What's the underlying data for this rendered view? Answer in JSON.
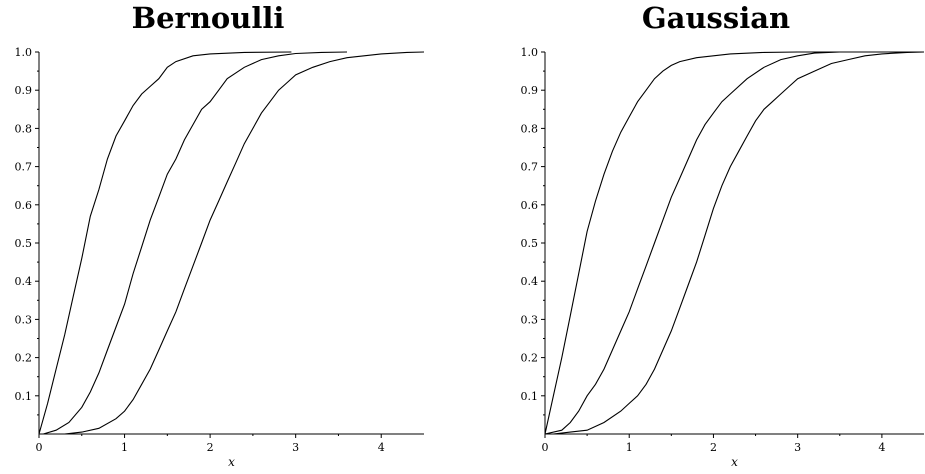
{
  "chart_data": [
    {
      "type": "line",
      "title": "Bernoulli",
      "xlabel": "x",
      "ylabel": "",
      "xlim": [
        0,
        4.5
      ],
      "ylim": [
        0,
        1.0
      ],
      "x_ticks": [
        "0",
        "1",
        "2",
        "3",
        "4"
      ],
      "y_ticks": [
        "0.1",
        "0.2",
        "0.3",
        "0.4",
        "0.5",
        "0.6",
        "0.7",
        "0.8",
        "0.9",
        "1.0"
      ],
      "series": [
        {
          "points": [
            [
              0,
              0
            ],
            [
              0.1,
              0.08
            ],
            [
              0.2,
              0.17
            ],
            [
              0.3,
              0.26
            ],
            [
              0.4,
              0.36
            ],
            [
              0.5,
              0.46
            ],
            [
              0.6,
              0.57
            ],
            [
              0.7,
              0.64
            ],
            [
              0.8,
              0.72
            ],
            [
              0.9,
              0.78
            ],
            [
              1.0,
              0.82
            ],
            [
              1.1,
              0.86
            ],
            [
              1.2,
              0.89
            ],
            [
              1.3,
              0.91
            ],
            [
              1.4,
              0.93
            ],
            [
              1.5,
              0.96
            ],
            [
              1.6,
              0.975
            ],
            [
              1.8,
              0.99
            ],
            [
              2.0,
              0.995
            ],
            [
              2.4,
              0.999
            ],
            [
              2.95,
              1.0
            ]
          ]
        },
        {
          "points": [
            [
              0.05,
              0
            ],
            [
              0.2,
              0.01
            ],
            [
              0.35,
              0.03
            ],
            [
              0.5,
              0.07
            ],
            [
              0.6,
              0.11
            ],
            [
              0.7,
              0.16
            ],
            [
              0.8,
              0.22
            ],
            [
              0.9,
              0.28
            ],
            [
              1.0,
              0.34
            ],
            [
              1.1,
              0.42
            ],
            [
              1.2,
              0.49
            ],
            [
              1.3,
              0.56
            ],
            [
              1.4,
              0.62
            ],
            [
              1.5,
              0.68
            ],
            [
              1.6,
              0.72
            ],
            [
              1.7,
              0.77
            ],
            [
              1.8,
              0.81
            ],
            [
              1.9,
              0.85
            ],
            [
              2.0,
              0.87
            ],
            [
              2.1,
              0.9
            ],
            [
              2.2,
              0.93
            ],
            [
              2.4,
              0.96
            ],
            [
              2.6,
              0.98
            ],
            [
              2.8,
              0.99
            ],
            [
              3.0,
              0.996
            ],
            [
              3.3,
              0.999
            ],
            [
              3.6,
              1.0
            ]
          ]
        },
        {
          "points": [
            [
              0.3,
              0
            ],
            [
              0.5,
              0.005
            ],
            [
              0.7,
              0.015
            ],
            [
              0.9,
              0.04
            ],
            [
              1.0,
              0.06
            ],
            [
              1.1,
              0.09
            ],
            [
              1.2,
              0.13
            ],
            [
              1.3,
              0.17
            ],
            [
              1.4,
              0.22
            ],
            [
              1.5,
              0.27
            ],
            [
              1.6,
              0.32
            ],
            [
              1.7,
              0.38
            ],
            [
              1.8,
              0.44
            ],
            [
              1.9,
              0.5
            ],
            [
              2.0,
              0.56
            ],
            [
              2.1,
              0.61
            ],
            [
              2.2,
              0.66
            ],
            [
              2.3,
              0.71
            ],
            [
              2.4,
              0.76
            ],
            [
              2.5,
              0.8
            ],
            [
              2.6,
              0.84
            ],
            [
              2.7,
              0.87
            ],
            [
              2.8,
              0.9
            ],
            [
              2.9,
              0.92
            ],
            [
              3.0,
              0.94
            ],
            [
              3.2,
              0.96
            ],
            [
              3.4,
              0.975
            ],
            [
              3.6,
              0.985
            ],
            [
              3.8,
              0.99
            ],
            [
              4.0,
              0.995
            ],
            [
              4.3,
              0.999
            ],
            [
              4.5,
              1.0
            ]
          ]
        }
      ]
    },
    {
      "type": "line",
      "title": "Gaussian",
      "xlabel": "x",
      "ylabel": "",
      "xlim": [
        0,
        4.5
      ],
      "ylim": [
        0,
        1.0
      ],
      "x_ticks": [
        "0",
        "1",
        "2",
        "3",
        "4"
      ],
      "y_ticks": [
        "0.1",
        "0.2",
        "0.3",
        "0.4",
        "0.5",
        "0.6",
        "0.7",
        "0.8",
        "0.9",
        "1.0"
      ],
      "series": [
        {
          "points": [
            [
              0,
              0
            ],
            [
              0.1,
              0.1
            ],
            [
              0.2,
              0.2
            ],
            [
              0.3,
              0.31
            ],
            [
              0.4,
              0.42
            ],
            [
              0.5,
              0.53
            ],
            [
              0.6,
              0.61
            ],
            [
              0.7,
              0.68
            ],
            [
              0.8,
              0.74
            ],
            [
              0.9,
              0.79
            ],
            [
              1.0,
              0.83
            ],
            [
              1.1,
              0.87
            ],
            [
              1.2,
              0.9
            ],
            [
              1.3,
              0.93
            ],
            [
              1.4,
              0.95
            ],
            [
              1.5,
              0.965
            ],
            [
              1.6,
              0.975
            ],
            [
              1.8,
              0.985
            ],
            [
              2.0,
              0.99
            ],
            [
              2.2,
              0.995
            ],
            [
              2.6,
              0.999
            ],
            [
              3.0,
              1.0
            ],
            [
              4.3,
              1.0
            ]
          ]
        },
        {
          "points": [
            [
              0,
              0
            ],
            [
              0.2,
              0.01
            ],
            [
              0.3,
              0.03
            ],
            [
              0.4,
              0.06
            ],
            [
              0.5,
              0.1
            ],
            [
              0.6,
              0.13
            ],
            [
              0.7,
              0.17
            ],
            [
              0.8,
              0.22
            ],
            [
              0.9,
              0.27
            ],
            [
              1.0,
              0.32
            ],
            [
              1.1,
              0.38
            ],
            [
              1.2,
              0.44
            ],
            [
              1.3,
              0.5
            ],
            [
              1.4,
              0.56
            ],
            [
              1.5,
              0.62
            ],
            [
              1.6,
              0.67
            ],
            [
              1.7,
              0.72
            ],
            [
              1.8,
              0.77
            ],
            [
              1.9,
              0.81
            ],
            [
              2.0,
              0.84
            ],
            [
              2.1,
              0.87
            ],
            [
              2.2,
              0.89
            ],
            [
              2.4,
              0.93
            ],
            [
              2.6,
              0.96
            ],
            [
              2.8,
              0.98
            ],
            [
              3.0,
              0.99
            ],
            [
              3.2,
              0.997
            ],
            [
              3.5,
              1.0
            ],
            [
              4.5,
              1.0
            ]
          ]
        },
        {
          "points": [
            [
              0.1,
              0
            ],
            [
              0.3,
              0.005
            ],
            [
              0.5,
              0.01
            ],
            [
              0.7,
              0.03
            ],
            [
              0.9,
              0.06
            ],
            [
              1.0,
              0.08
            ],
            [
              1.1,
              0.1
            ],
            [
              1.2,
              0.13
            ],
            [
              1.3,
              0.17
            ],
            [
              1.4,
              0.22
            ],
            [
              1.5,
              0.27
            ],
            [
              1.6,
              0.33
            ],
            [
              1.7,
              0.39
            ],
            [
              1.8,
              0.45
            ],
            [
              1.9,
              0.52
            ],
            [
              2.0,
              0.59
            ],
            [
              2.1,
              0.65
            ],
            [
              2.2,
              0.7
            ],
            [
              2.3,
              0.74
            ],
            [
              2.4,
              0.78
            ],
            [
              2.5,
              0.82
            ],
            [
              2.6,
              0.85
            ],
            [
              2.7,
              0.87
            ],
            [
              2.8,
              0.89
            ],
            [
              2.9,
              0.91
            ],
            [
              3.0,
              0.93
            ],
            [
              3.2,
              0.95
            ],
            [
              3.4,
              0.97
            ],
            [
              3.6,
              0.98
            ],
            [
              3.8,
              0.99
            ],
            [
              4.0,
              0.995
            ],
            [
              4.3,
              0.999
            ],
            [
              4.5,
              1.0
            ]
          ]
        }
      ]
    }
  ]
}
